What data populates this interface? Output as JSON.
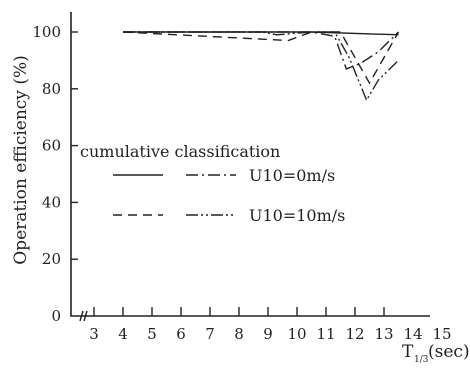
{
  "chart_data": {
    "type": "line",
    "xlabel_main": "T",
    "xlabel_sub": "1/3",
    "xlabel_unit": "(sec)",
    "ylabel": "Operation efficiency (%)",
    "xlim": [
      2.5,
      15
    ],
    "ylim": [
      0,
      110
    ],
    "x_ticks": [
      3,
      4,
      5,
      6,
      7,
      8,
      9,
      10,
      11,
      12,
      13,
      14,
      15
    ],
    "y_ticks": [
      0,
      20,
      40,
      60,
      80,
      100
    ],
    "legend": {
      "title": "cumulative classification",
      "rows": [
        {
          "label": "U10=0m/s",
          "styles": [
            "solid",
            "dashdot"
          ]
        },
        {
          "label": "U10=10m/s",
          "styles": [
            "dashed",
            "dashdotdot"
          ]
        }
      ]
    },
    "series": [
      {
        "style": "solid",
        "x": [
          4,
          10.5,
          13.5
        ],
        "y": [
          100,
          100,
          99
        ]
      },
      {
        "style": "dashdot",
        "x": [
          4,
          10.5,
          11.3,
          11.7,
          12.2,
          12.8,
          13.5
        ],
        "y": [
          100,
          100,
          98.5,
          87,
          89,
          93,
          100
        ]
      },
      {
        "style": "dashed",
        "x": [
          4,
          9.7,
          10.5,
          11.5,
          12.5,
          13.5
        ],
        "y": [
          100,
          97,
          100,
          100,
          82,
          100
        ]
      },
      {
        "style": "dashdotdot",
        "x": [
          4,
          8.8,
          9.3,
          10.5,
          11.3,
          11.8,
          12.4,
          12.8,
          13.5
        ],
        "y": [
          100,
          100,
          99,
          100,
          100,
          91,
          76,
          83,
          90
        ]
      }
    ]
  }
}
